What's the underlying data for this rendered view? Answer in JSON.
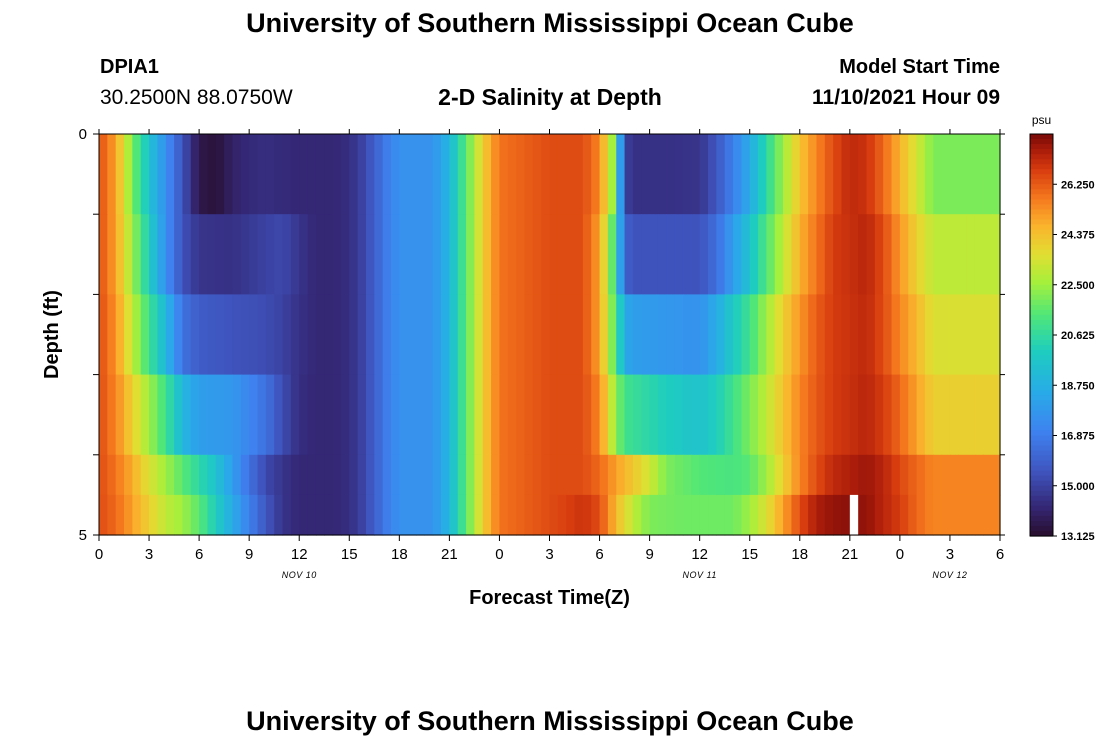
{
  "header": {
    "title": "University of Southern Mississippi Ocean Cube",
    "station": "DPIA1",
    "coordinates": "30.2500N  88.0750W",
    "subtitle": "2-D Salinity at Depth",
    "model_start_label": "Model Start Time",
    "model_start_value": "11/10/2021 Hour 09"
  },
  "footer": {
    "title": "University of Southern Mississippi Ocean Cube"
  },
  "chart_data": {
    "type": "heatmap",
    "title": "2-D Salinity at Depth",
    "xlabel": "Forecast Time(Z)",
    "ylabel": "Depth (ft)",
    "x_tick_labels": [
      "0",
      "3",
      "6",
      "9",
      "12",
      "15",
      "18",
      "21",
      "0",
      "3",
      "6",
      "9",
      "12",
      "15",
      "18",
      "21",
      "0",
      "3",
      "6"
    ],
    "date_labels": [
      {
        "label": "NOV 10",
        "tick": 4
      },
      {
        "label": "NOV 11",
        "tick": 12
      },
      {
        "label": "NOV 12",
        "tick": 17
      }
    ],
    "y_tick_labels": [
      "0",
      "5"
    ],
    "ylim": [
      0,
      5
    ],
    "colorbar": {
      "unit": "psu",
      "min": 13.125,
      "max": 28.125,
      "tick_labels": [
        "26.250",
        "24.375",
        "22.500",
        "20.625",
        "18.750",
        "16.875",
        "15.000",
        "13.125"
      ],
      "tick_values": [
        26.25,
        24.375,
        22.5,
        20.625,
        18.75,
        16.875,
        15.0,
        13.125
      ]
    },
    "x_hours_relative_to_nov10_00z": [
      0,
      54
    ],
    "depth_layers_ft": [
      "0-1",
      "1-2",
      "2-3",
      "3-4",
      "4-4.5",
      "4.5-5"
    ],
    "series_salinity_psu": [
      {
        "layer": "0-1",
        "points": [
          [
            0,
            26.5
          ],
          [
            1,
            25.0
          ],
          [
            2,
            22.0
          ],
          [
            3,
            19.5
          ],
          [
            4,
            17.5
          ],
          [
            5,
            15.5
          ],
          [
            6,
            13.6
          ],
          [
            7,
            13.3
          ],
          [
            8,
            14.0
          ],
          [
            9,
            14.3
          ],
          [
            10,
            14.4
          ],
          [
            12,
            14.2
          ],
          [
            14,
            14.2
          ],
          [
            15,
            14.4
          ],
          [
            16,
            15.2
          ],
          [
            17,
            16.6
          ],
          [
            18,
            17.6
          ],
          [
            20,
            17.6
          ],
          [
            21,
            19.0
          ],
          [
            22,
            21.5
          ],
          [
            23,
            24.0
          ],
          [
            24,
            25.8
          ],
          [
            27,
            26.5
          ],
          [
            29,
            26.5
          ],
          [
            30,
            25.5
          ],
          [
            30.9,
            22.0
          ],
          [
            31.5,
            15.0
          ],
          [
            32,
            14.5
          ],
          [
            34,
            14.5
          ],
          [
            36,
            14.6
          ],
          [
            37,
            15.6
          ],
          [
            38,
            17.0
          ],
          [
            39,
            18.5
          ],
          [
            40,
            20.5
          ],
          [
            41,
            22.5
          ],
          [
            42,
            24.3
          ],
          [
            43,
            25.5
          ],
          [
            44,
            26.5
          ],
          [
            45,
            27.2
          ],
          [
            46,
            27.0
          ],
          [
            47,
            26.0
          ],
          [
            48,
            24.7
          ],
          [
            49,
            23.4
          ],
          [
            50,
            22.0
          ]
        ]
      },
      {
        "layer": "1-2",
        "points": [
          [
            0,
            26.5
          ],
          [
            1,
            25.0
          ],
          [
            2,
            22.5
          ],
          [
            3,
            20.0
          ],
          [
            4,
            17.5
          ],
          [
            5,
            15.5
          ],
          [
            6,
            14.6
          ],
          [
            8,
            14.5
          ],
          [
            10,
            15.0
          ],
          [
            11,
            15.2
          ],
          [
            12,
            14.6
          ],
          [
            13,
            14.2
          ],
          [
            14,
            14.2
          ],
          [
            15,
            14.4
          ],
          [
            16,
            15.2
          ],
          [
            17,
            16.6
          ],
          [
            18,
            17.6
          ],
          [
            20,
            17.6
          ],
          [
            21,
            19.0
          ],
          [
            22,
            21.5
          ],
          [
            23,
            24.0
          ],
          [
            24,
            25.8
          ],
          [
            27,
            26.5
          ],
          [
            29,
            26.5
          ],
          [
            30,
            25.0
          ],
          [
            30.9,
            21.0
          ],
          [
            31.5,
            16.0
          ],
          [
            32,
            15.5
          ],
          [
            34,
            15.5
          ],
          [
            36,
            15.5
          ],
          [
            37,
            16.4
          ],
          [
            38,
            18.0
          ],
          [
            39,
            19.5
          ],
          [
            40,
            21.3
          ],
          [
            41,
            23.0
          ],
          [
            42,
            24.7
          ],
          [
            43,
            25.8
          ],
          [
            44,
            26.8
          ],
          [
            46,
            27.3
          ],
          [
            47,
            26.5
          ],
          [
            48,
            25.2
          ],
          [
            49,
            24.0
          ],
          [
            50,
            23.0
          ]
        ]
      },
      {
        "layer": "2-3",
        "points": [
          [
            0,
            26.5
          ],
          [
            1,
            25.3
          ],
          [
            2,
            23.0
          ],
          [
            3,
            21.0
          ],
          [
            4,
            19.0
          ],
          [
            5,
            16.5
          ],
          [
            6,
            15.8
          ],
          [
            8,
            15.5
          ],
          [
            10,
            15.3
          ],
          [
            11,
            15.0
          ],
          [
            12,
            14.5
          ],
          [
            13,
            14.2
          ],
          [
            14,
            14.2
          ],
          [
            15,
            14.4
          ],
          [
            16,
            15.2
          ],
          [
            17,
            16.6
          ],
          [
            18,
            17.6
          ],
          [
            20,
            17.6
          ],
          [
            21,
            19.0
          ],
          [
            22,
            21.5
          ],
          [
            23,
            24.0
          ],
          [
            24,
            25.8
          ],
          [
            27,
            26.5
          ],
          [
            29,
            26.5
          ],
          [
            30,
            25.0
          ],
          [
            30.9,
            21.5
          ],
          [
            31.5,
            18.5
          ],
          [
            32,
            18.0
          ],
          [
            34,
            17.8
          ],
          [
            36,
            17.6
          ],
          [
            37,
            18.5
          ],
          [
            38,
            19.8
          ],
          [
            39,
            21.0
          ],
          [
            40,
            22.5
          ],
          [
            41,
            24.0
          ],
          [
            42,
            25.2
          ],
          [
            43,
            26.2
          ],
          [
            44,
            26.8
          ],
          [
            46,
            27.2
          ],
          [
            47,
            26.5
          ],
          [
            48,
            25.5
          ],
          [
            49,
            24.6
          ],
          [
            50,
            23.5
          ]
        ]
      },
      {
        "layer": "3-4",
        "points": [
          [
            0,
            26.5
          ],
          [
            1,
            25.5
          ],
          [
            2,
            24.0
          ],
          [
            3,
            22.5
          ],
          [
            4,
            21.0
          ],
          [
            5,
            19.0
          ],
          [
            6,
            18.0
          ],
          [
            8,
            17.8
          ],
          [
            10,
            16.5
          ],
          [
            11,
            15.3
          ],
          [
            12,
            14.4
          ],
          [
            13,
            14.2
          ],
          [
            14,
            14.2
          ],
          [
            15,
            14.4
          ],
          [
            16,
            15.2
          ],
          [
            17,
            16.6
          ],
          [
            18,
            17.6
          ],
          [
            20,
            17.6
          ],
          [
            21,
            19.0
          ],
          [
            22,
            21.5
          ],
          [
            23,
            24.0
          ],
          [
            24,
            25.8
          ],
          [
            27,
            26.5
          ],
          [
            29,
            26.5
          ],
          [
            30,
            25.5
          ],
          [
            30.9,
            22.5
          ],
          [
            31.5,
            21.0
          ],
          [
            32,
            20.8
          ],
          [
            34,
            20.0
          ],
          [
            36,
            19.5
          ],
          [
            37,
            20.0
          ],
          [
            38,
            21.0
          ],
          [
            39,
            22.0
          ],
          [
            40,
            23.0
          ],
          [
            41,
            24.3
          ],
          [
            42,
            25.5
          ],
          [
            43,
            26.3
          ],
          [
            44,
            26.8
          ],
          [
            46,
            27.3
          ],
          [
            47,
            26.8
          ],
          [
            48,
            26.0
          ],
          [
            49,
            25.0
          ],
          [
            50,
            24.0
          ]
        ]
      },
      {
        "layer": "4-4.5",
        "points": [
          [
            0,
            26.5
          ],
          [
            1,
            25.8
          ],
          [
            2,
            24.8
          ],
          [
            3,
            23.5
          ],
          [
            4,
            22.5
          ],
          [
            5,
            21.5
          ],
          [
            6,
            20.5
          ],
          [
            7,
            19.5
          ],
          [
            8,
            18.0
          ],
          [
            9,
            16.5
          ],
          [
            10,
            15.2
          ],
          [
            11,
            14.6
          ],
          [
            12,
            14.2
          ],
          [
            13,
            14.2
          ],
          [
            14,
            14.2
          ],
          [
            15,
            14.4
          ],
          [
            16,
            15.2
          ],
          [
            17,
            16.6
          ],
          [
            18,
            17.6
          ],
          [
            20,
            17.6
          ],
          [
            21,
            19.0
          ],
          [
            22,
            21.5
          ],
          [
            23,
            24.0
          ],
          [
            24,
            25.8
          ],
          [
            27,
            26.5
          ],
          [
            29,
            26.5
          ],
          [
            30,
            26.0
          ],
          [
            31,
            25.0
          ],
          [
            32,
            24.2
          ],
          [
            33,
            23.3
          ],
          [
            34,
            22.0
          ],
          [
            36,
            21.4
          ],
          [
            38,
            21.2
          ],
          [
            39,
            21.5
          ],
          [
            40,
            22.5
          ],
          [
            41,
            24.0
          ],
          [
            42,
            25.5
          ],
          [
            43,
            26.5
          ],
          [
            44,
            27.2
          ],
          [
            46,
            27.7
          ],
          [
            47,
            27.3
          ],
          [
            48,
            26.6
          ],
          [
            49,
            26.0
          ],
          [
            50,
            25.5
          ]
        ]
      },
      {
        "layer": "4.5-5",
        "points": [
          [
            0,
            26.5
          ],
          [
            1,
            26.0
          ],
          [
            2,
            25.0
          ],
          [
            3,
            24.0
          ],
          [
            4,
            23.0
          ],
          [
            5,
            22.5
          ],
          [
            6,
            21.5
          ],
          [
            7,
            20.0
          ],
          [
            8,
            18.5
          ],
          [
            9,
            17.0
          ],
          [
            10,
            15.6
          ],
          [
            11,
            14.6
          ],
          [
            12,
            14.2
          ],
          [
            13,
            14.2
          ],
          [
            14,
            14.2
          ],
          [
            15,
            14.4
          ],
          [
            16,
            15.2
          ],
          [
            17,
            16.6
          ],
          [
            18,
            17.6
          ],
          [
            20,
            17.6
          ],
          [
            21,
            19.0
          ],
          [
            22,
            21.5
          ],
          [
            23,
            24.0
          ],
          [
            24,
            25.8
          ],
          [
            27,
            26.5
          ],
          [
            28,
            26.7
          ],
          [
            29,
            27.0
          ],
          [
            30,
            26.5
          ],
          [
            31,
            24.5
          ],
          [
            32,
            23.0
          ],
          [
            33,
            22.0
          ],
          [
            35,
            21.8
          ],
          [
            38,
            21.8
          ],
          [
            39,
            22.5
          ],
          [
            40,
            23.5
          ],
          [
            41,
            25.0
          ],
          [
            42,
            26.5
          ],
          [
            43,
            27.5
          ],
          [
            44,
            27.8
          ],
          [
            45,
            27.9
          ],
          [
            46,
            27.8
          ],
          [
            47,
            27.3
          ],
          [
            48,
            26.8
          ],
          [
            49,
            26.0
          ],
          [
            50,
            25.5
          ]
        ]
      }
    ],
    "missing_data_cells": [
      {
        "layer": "4.5-5",
        "hour": 45
      }
    ],
    "grid": false
  }
}
